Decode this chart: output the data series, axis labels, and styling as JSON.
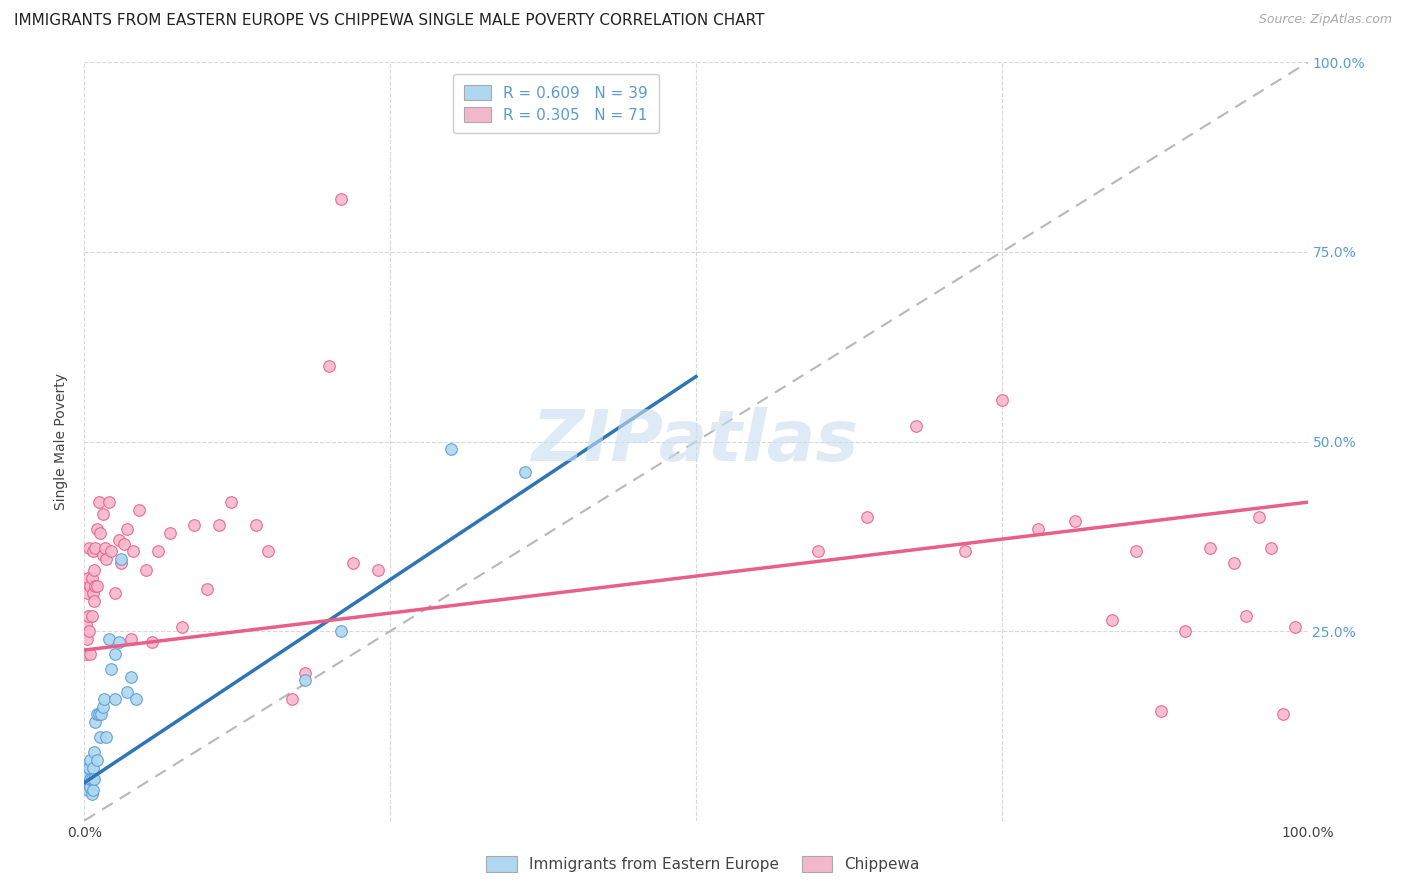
{
  "title": "IMMIGRANTS FROM EASTERN EUROPE VS CHIPPEWA SINGLE MALE POVERTY CORRELATION CHART",
  "source": "Source: ZipAtlas.com",
  "ylabel": "Single Male Poverty",
  "xlim": [
    0,
    1
  ],
  "ylim": [
    0,
    1
  ],
  "watermark": "ZIPatlas",
  "blue_color": "#5b9bd5",
  "pink_color": "#e8608a",
  "blue_scatter_color": "#add8f0",
  "pink_scatter_color": "#f4b8cc",
  "blue_line_color": "#2e75b6",
  "pink_line_color": "#e8608a",
  "dashed_line_color": "#b8b8b8",
  "blue_R": 0.609,
  "blue_N": 39,
  "pink_R": 0.305,
  "pink_N": 71,
  "background_color": "#ffffff",
  "grid_color": "#d8d8d8",
  "title_fontsize": 11,
  "axis_label_fontsize": 10,
  "tick_fontsize": 10,
  "legend_fontsize": 11,
  "blue_scatter_x": [
    0.001,
    0.001,
    0.002,
    0.002,
    0.003,
    0.003,
    0.004,
    0.004,
    0.005,
    0.005,
    0.005,
    0.006,
    0.006,
    0.007,
    0.007,
    0.008,
    0.008,
    0.009,
    0.01,
    0.01,
    0.012,
    0.013,
    0.014,
    0.015,
    0.016,
    0.018,
    0.02,
    0.022,
    0.025,
    0.025,
    0.028,
    0.03,
    0.035,
    0.038,
    0.042,
    0.18,
    0.21,
    0.3,
    0.36
  ],
  "blue_scatter_y": [
    0.05,
    0.065,
    0.045,
    0.07,
    0.04,
    0.06,
    0.05,
    0.07,
    0.045,
    0.055,
    0.08,
    0.035,
    0.055,
    0.04,
    0.07,
    0.055,
    0.09,
    0.13,
    0.08,
    0.14,
    0.14,
    0.11,
    0.14,
    0.15,
    0.16,
    0.11,
    0.24,
    0.2,
    0.16,
    0.22,
    0.235,
    0.345,
    0.17,
    0.19,
    0.16,
    0.185,
    0.25,
    0.49,
    0.46
  ],
  "pink_scatter_x": [
    0.001,
    0.001,
    0.002,
    0.002,
    0.003,
    0.003,
    0.004,
    0.004,
    0.005,
    0.005,
    0.006,
    0.006,
    0.007,
    0.007,
    0.008,
    0.008,
    0.009,
    0.009,
    0.01,
    0.01,
    0.012,
    0.013,
    0.015,
    0.015,
    0.017,
    0.018,
    0.02,
    0.022,
    0.025,
    0.028,
    0.03,
    0.032,
    0.035,
    0.038,
    0.04,
    0.045,
    0.05,
    0.055,
    0.06,
    0.07,
    0.08,
    0.09,
    0.1,
    0.11,
    0.12,
    0.14,
    0.15,
    0.17,
    0.18,
    0.2,
    0.21,
    0.22,
    0.24,
    0.6,
    0.64,
    0.68,
    0.72,
    0.75,
    0.78,
    0.81,
    0.84,
    0.86,
    0.88,
    0.9,
    0.92,
    0.94,
    0.95,
    0.96,
    0.97,
    0.98,
    0.99
  ],
  "pink_scatter_y": [
    0.22,
    0.26,
    0.24,
    0.3,
    0.27,
    0.32,
    0.25,
    0.36,
    0.22,
    0.31,
    0.27,
    0.32,
    0.3,
    0.355,
    0.33,
    0.29,
    0.36,
    0.31,
    0.31,
    0.385,
    0.42,
    0.38,
    0.35,
    0.405,
    0.36,
    0.345,
    0.42,
    0.355,
    0.3,
    0.37,
    0.34,
    0.365,
    0.385,
    0.24,
    0.355,
    0.41,
    0.33,
    0.235,
    0.355,
    0.38,
    0.255,
    0.39,
    0.305,
    0.39,
    0.42,
    0.39,
    0.355,
    0.16,
    0.195,
    0.6,
    0.82,
    0.34,
    0.33,
    0.355,
    0.4,
    0.52,
    0.355,
    0.555,
    0.385,
    0.395,
    0.265,
    0.355,
    0.145,
    0.25,
    0.36,
    0.34,
    0.27,
    0.4,
    0.36,
    0.14,
    0.255
  ],
  "blue_line_x0": 0.0,
  "blue_line_y0": 0.05,
  "blue_line_x1": 0.42,
  "blue_line_y1": 0.5,
  "pink_line_x0": 0.0,
  "pink_line_y0": 0.225,
  "pink_line_x1": 1.0,
  "pink_line_y1": 0.42
}
